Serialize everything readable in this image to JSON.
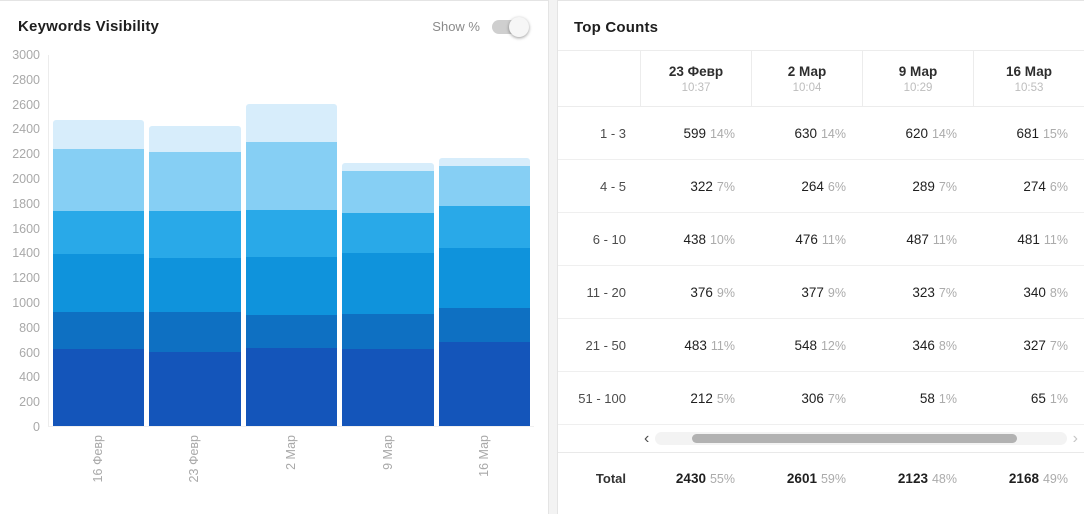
{
  "left_panel": {
    "title": "Keywords Visibility",
    "toggle_label": "Show %",
    "toggle_state": "off"
  },
  "chart_data": {
    "type": "bar",
    "subtype": "stacked",
    "title": "Keywords Visibility",
    "categories": [
      "16 Февр",
      "23 Февр",
      "2 Мар",
      "9 Мар",
      "16 Мар"
    ],
    "series": [
      {
        "name": "1 - 3",
        "color": "#1455ba",
        "values": [
          620,
          599,
          630,
          620,
          681
        ]
      },
      {
        "name": "4 - 5",
        "color": "#0e70c2",
        "values": [
          300,
          322,
          264,
          289,
          274
        ]
      },
      {
        "name": "6 - 10",
        "color": "#0f93dc",
        "values": [
          470,
          438,
          476,
          487,
          481
        ]
      },
      {
        "name": "11 - 20",
        "color": "#29a9e8",
        "values": [
          350,
          376,
          377,
          323,
          340
        ]
      },
      {
        "name": "21 - 50",
        "color": "#86cff4",
        "values": [
          500,
          483,
          548,
          346,
          327
        ]
      },
      {
        "name": "51 - 100",
        "color": "#d7edfb",
        "values": [
          235,
          212,
          306,
          58,
          65
        ]
      }
    ],
    "ylim": [
      0,
      3000
    ],
    "ytick_step": 200,
    "grid": false,
    "legend": "none"
  },
  "table": {
    "title": "Top Counts",
    "columns": [
      {
        "date": "23 Февр",
        "time": "10:37"
      },
      {
        "date": "2 Мар",
        "time": "10:04"
      },
      {
        "date": "9 Мар",
        "time": "10:29"
      },
      {
        "date": "16 Мар",
        "time": "10:53"
      }
    ],
    "rows": [
      {
        "label": "1 - 3",
        "cells": [
          {
            "value": "599",
            "pct": "14%"
          },
          {
            "value": "630",
            "pct": "14%"
          },
          {
            "value": "620",
            "pct": "14%"
          },
          {
            "value": "681",
            "pct": "15%"
          }
        ]
      },
      {
        "label": "4 - 5",
        "cells": [
          {
            "value": "322",
            "pct": "7%"
          },
          {
            "value": "264",
            "pct": "6%"
          },
          {
            "value": "289",
            "pct": "7%"
          },
          {
            "value": "274",
            "pct": "6%"
          }
        ]
      },
      {
        "label": "6 - 10",
        "cells": [
          {
            "value": "438",
            "pct": "10%"
          },
          {
            "value": "476",
            "pct": "11%"
          },
          {
            "value": "487",
            "pct": "11%"
          },
          {
            "value": "481",
            "pct": "11%"
          }
        ]
      },
      {
        "label": "11 - 20",
        "cells": [
          {
            "value": "376",
            "pct": "9%"
          },
          {
            "value": "377",
            "pct": "9%"
          },
          {
            "value": "323",
            "pct": "7%"
          },
          {
            "value": "340",
            "pct": "8%"
          }
        ]
      },
      {
        "label": "21 - 50",
        "cells": [
          {
            "value": "483",
            "pct": "11%"
          },
          {
            "value": "548",
            "pct": "12%"
          },
          {
            "value": "346",
            "pct": "8%"
          },
          {
            "value": "327",
            "pct": "7%"
          }
        ]
      },
      {
        "label": "51 - 100",
        "cells": [
          {
            "value": "212",
            "pct": "5%"
          },
          {
            "value": "306",
            "pct": "7%"
          },
          {
            "value": "58",
            "pct": "1%"
          },
          {
            "value": "65",
            "pct": "1%"
          }
        ]
      }
    ],
    "total_row": {
      "label": "Total",
      "cells": [
        {
          "value": "2430",
          "pct": "55%"
        },
        {
          "value": "2601",
          "pct": "59%"
        },
        {
          "value": "2123",
          "pct": "48%"
        },
        {
          "value": "2168",
          "pct": "49%"
        }
      ]
    },
    "scrollbar": {
      "left_arrow": "‹",
      "right_arrow": "›"
    }
  }
}
